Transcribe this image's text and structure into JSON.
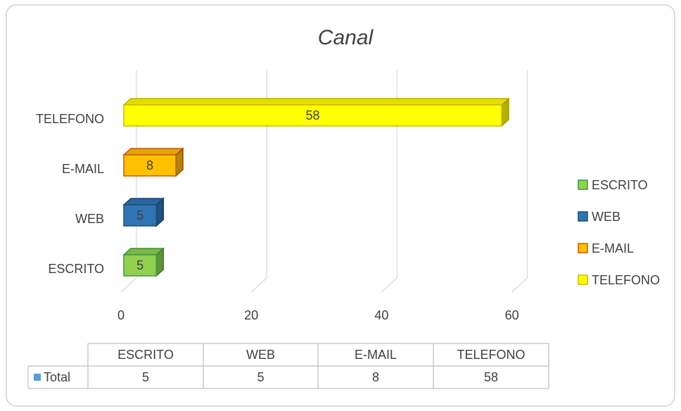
{
  "chart_data": {
    "type": "bar",
    "title": "Canal",
    "categories": [
      "ESCRITO",
      "WEB",
      "E-MAIL",
      "TELEFONO"
    ],
    "series": [
      {
        "name": "Total",
        "color": "#5b9bd5",
        "values": [
          5,
          5,
          8,
          58
        ]
      }
    ],
    "colors": [
      "#92d050",
      "#2e75b6",
      "#ffc000",
      "#ffff00"
    ],
    "edge_colors": [
      "#3a9a3a",
      "#1f4e79",
      "#c55a11",
      "#d4b800"
    ],
    "xlim": [
      0,
      60
    ],
    "xticks": [
      0,
      20,
      40,
      60
    ],
    "grid": true,
    "legend": "right",
    "data_table": true
  }
}
